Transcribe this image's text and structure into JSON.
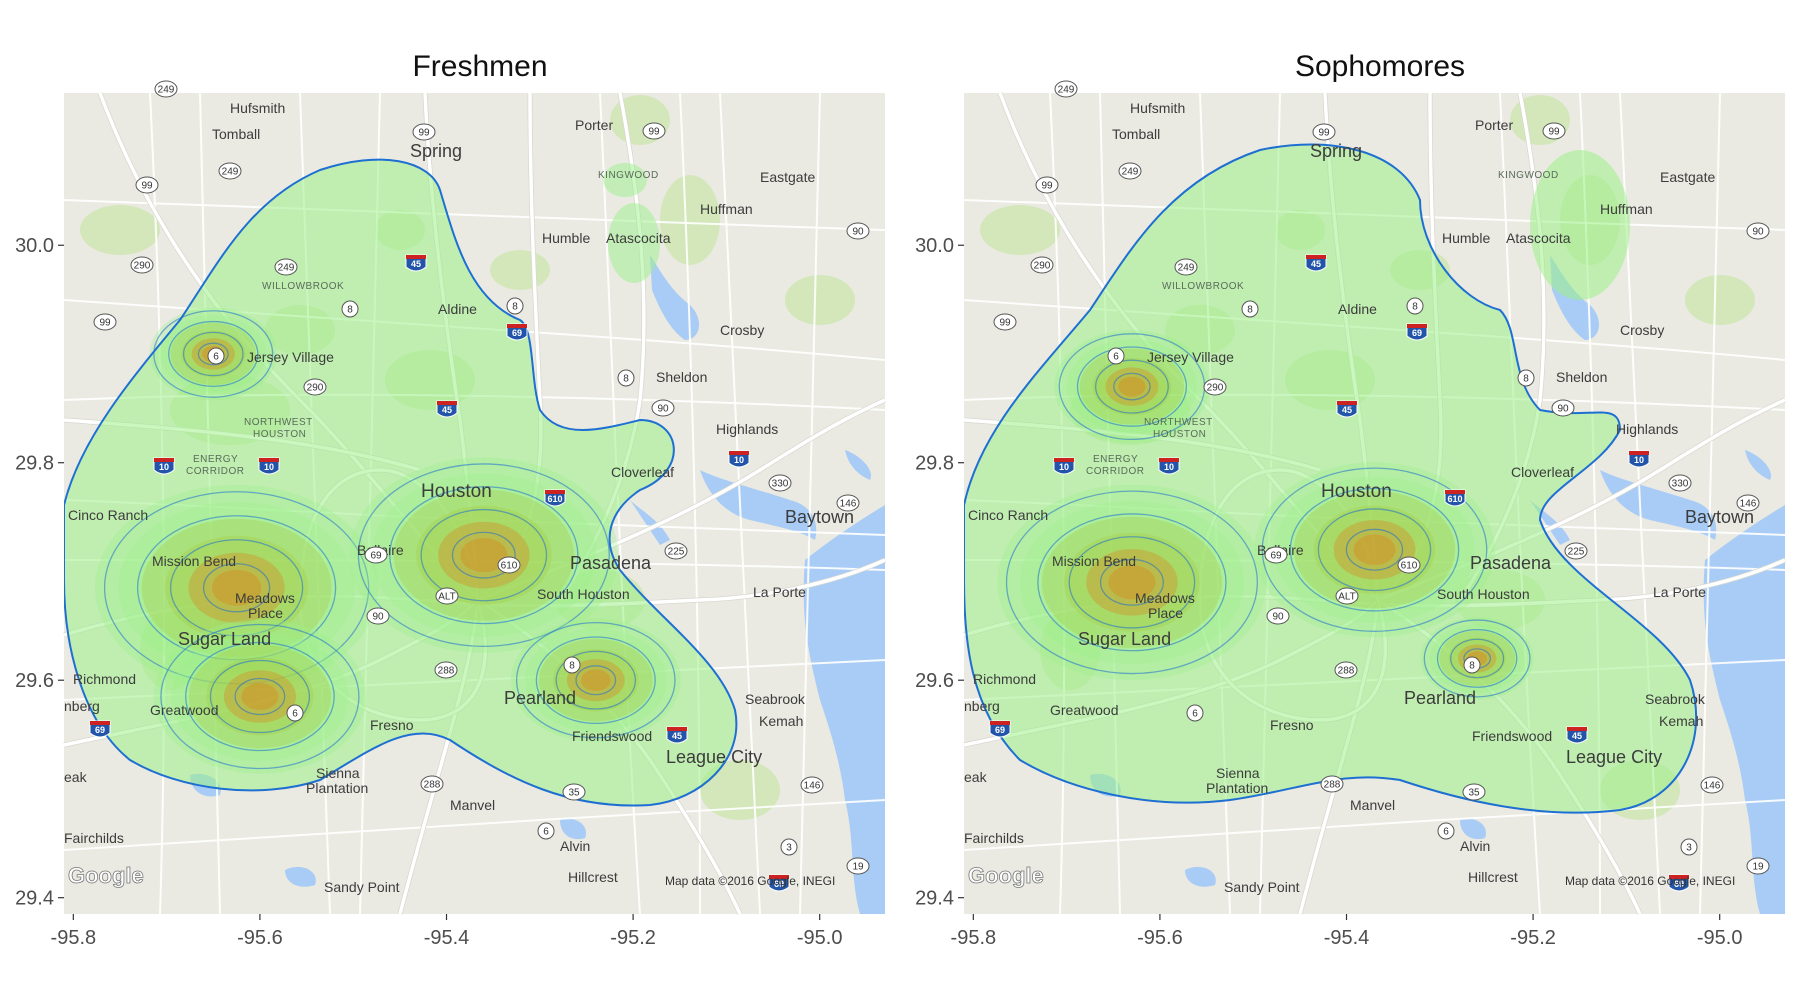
{
  "panels": [
    {
      "title": "Freshmen",
      "density_peaks": [
        {
          "lon": -95.625,
          "lat": 29.685,
          "level": 1.0
        },
        {
          "lon": -95.36,
          "lat": 29.715,
          "level": 0.95
        },
        {
          "lon": -95.6,
          "lat": 29.585,
          "level": 0.75
        },
        {
          "lon": -95.24,
          "lat": 29.6,
          "level": 0.6
        },
        {
          "lon": -95.65,
          "lat": 29.9,
          "level": 0.45
        }
      ]
    },
    {
      "title": "Sophomores",
      "density_peaks": [
        {
          "lon": -95.63,
          "lat": 29.69,
          "level": 0.95
        },
        {
          "lon": -95.37,
          "lat": 29.72,
          "level": 0.85
        },
        {
          "lon": -95.63,
          "lat": 29.87,
          "level": 0.55
        },
        {
          "lon": -95.26,
          "lat": 29.62,
          "level": 0.4
        }
      ]
    }
  ],
  "x_ticks": [
    "-95.8",
    "-95.6",
    "-95.4",
    "-95.2",
    "-95.0"
  ],
  "y_ticks": [
    "30.0",
    "29.8",
    "29.6",
    "29.4"
  ],
  "map_labels": {
    "hufsmith": "Hufsmith",
    "tomball": "Tomball",
    "porter": "Porter",
    "spring": "Spring",
    "kingwood": "KINGWOOD",
    "eastgate": "Eastgate",
    "huffman": "Huffman",
    "humble": "Humble",
    "atascocita": "Atascocita",
    "willowbrook": "WILLOWBROOK",
    "aldine": "Aldine",
    "crosby": "Crosby",
    "jersey_village": "Jersey Village",
    "sheldon": "Sheldon",
    "northwest_houston_1": "NORTHWEST",
    "northwest_houston_2": "HOUSTON",
    "highlands": "Highlands",
    "energy_corridor_1": "ENERGY",
    "energy_corridor_2": "CORRIDOR",
    "cloverleaf": "Cloverleaf",
    "houston": "Houston",
    "cinco_ranch": "Cinco Ranch",
    "baytown": "Baytown",
    "bellaire": "Bellaire",
    "mission_bend": "Mission Bend",
    "pasadena": "Pasadena",
    "la_porte": "La Porte",
    "meadows_1": "Meadows",
    "meadows_2": "Place",
    "south_houston": "South Houston",
    "sugar_land": "Sugar Land",
    "richmond": "Richmond",
    "rosenberg": "nberg",
    "greatwood": "Greatwood",
    "pearland": "Pearland",
    "seabrook": "Seabrook",
    "kemah": "Kemah",
    "fresno": "Fresno",
    "friendswood": "Friendswood",
    "league_city": "League City",
    "lake": "eak",
    "sienna_1": "Sienna",
    "sienna_2": "Plantation",
    "manvel": "Manvel",
    "fairchilds": "Fairchilds",
    "alvin": "Alvin",
    "hillcrest": "Hillcrest",
    "sandy_point": "Sandy Point",
    "attribution": "Map data ©2016 Google, INEGI",
    "google_logo": "Google"
  },
  "colors": {
    "map_bg": "#eaeae2",
    "water": "#a8ccf5",
    "road": "#ffffff",
    "park": "#cde6b0",
    "contour": "#1e6fd2",
    "density_low": "#9cf089",
    "density_mid": "#a6c93c",
    "density_high": "#e07b12"
  }
}
